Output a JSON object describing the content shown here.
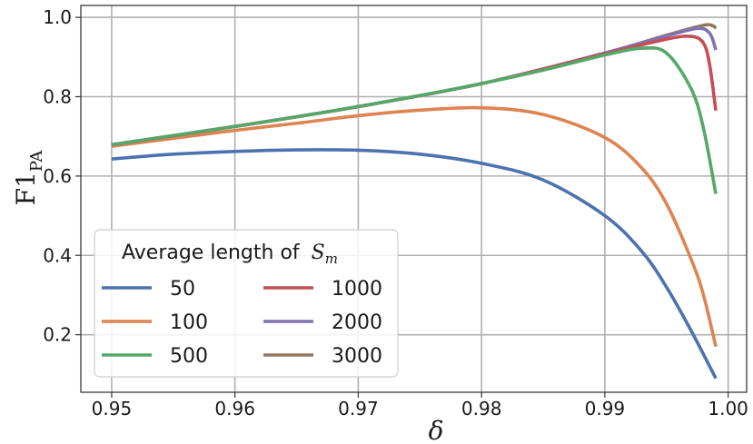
{
  "chart_data": {
    "type": "line",
    "xlabel": "δ",
    "ylabel": "F1",
    "ylabel_sub": "PA",
    "xlim": [
      0.9475,
      1.0015
    ],
    "ylim": [
      0.055,
      1.03
    ],
    "xticks": [
      0.95,
      0.96,
      0.97,
      0.98,
      0.99,
      1.0
    ],
    "xtick_labels": [
      "0.95",
      "0.96",
      "0.97",
      "0.98",
      "0.99",
      "1.00"
    ],
    "yticks": [
      0.2,
      0.4,
      0.6,
      0.8,
      1.0
    ],
    "ytick_labels": [
      "0.2",
      "0.4",
      "0.6",
      "0.8",
      "1.0"
    ],
    "grid": true,
    "legend": {
      "title": "Average length of",
      "title_math": "S",
      "title_math_sub": "m",
      "placement": "lower-left",
      "columns": 2
    },
    "series": [
      {
        "name": "50",
        "color": "#4c72b0",
        "x": [
          0.95,
          0.955,
          0.96,
          0.965,
          0.97,
          0.975,
          0.98,
          0.985,
          0.99,
          0.993,
          0.995,
          0.997,
          0.999
        ],
        "y": [
          0.643,
          0.655,
          0.662,
          0.666,
          0.665,
          0.655,
          0.632,
          0.59,
          0.5,
          0.41,
          0.32,
          0.21,
          0.09
        ]
      },
      {
        "name": "100",
        "color": "#dd8452",
        "x": [
          0.95,
          0.955,
          0.96,
          0.965,
          0.97,
          0.975,
          0.98,
          0.985,
          0.99,
          0.993,
          0.995,
          0.997,
          0.998,
          0.999
        ],
        "y": [
          0.675,
          0.695,
          0.715,
          0.733,
          0.752,
          0.766,
          0.772,
          0.755,
          0.697,
          0.62,
          0.53,
          0.39,
          0.3,
          0.17
        ]
      },
      {
        "name": "500",
        "color": "#55a868",
        "x": [
          0.95,
          0.955,
          0.96,
          0.965,
          0.97,
          0.975,
          0.98,
          0.985,
          0.99,
          0.993,
          0.995,
          0.997,
          0.998,
          0.999
        ],
        "y": [
          0.679,
          0.702,
          0.725,
          0.749,
          0.775,
          0.803,
          0.833,
          0.867,
          0.905,
          0.922,
          0.91,
          0.82,
          0.72,
          0.555
        ]
      },
      {
        "name": "1000",
        "color": "#c44e52",
        "x": [
          0.95,
          0.96,
          0.97,
          0.98,
          0.99,
          0.995,
          0.997,
          0.998,
          0.9985,
          0.999
        ],
        "y": [
          0.679,
          0.725,
          0.775,
          0.833,
          0.908,
          0.945,
          0.952,
          0.935,
          0.88,
          0.765
        ]
      },
      {
        "name": "2000",
        "color": "#8172b3",
        "x": [
          0.95,
          0.96,
          0.97,
          0.98,
          0.99,
          0.995,
          0.9975,
          0.9985,
          0.999
        ],
        "y": [
          0.679,
          0.725,
          0.775,
          0.833,
          0.91,
          0.953,
          0.972,
          0.96,
          0.918
        ]
      },
      {
        "name": "3000",
        "color": "#937860",
        "x": [
          0.95,
          0.96,
          0.97,
          0.98,
          0.99,
          0.995,
          0.998,
          0.9988,
          0.999
        ],
        "y": [
          0.679,
          0.725,
          0.775,
          0.833,
          0.91,
          0.955,
          0.98,
          0.978,
          0.972
        ]
      }
    ]
  }
}
